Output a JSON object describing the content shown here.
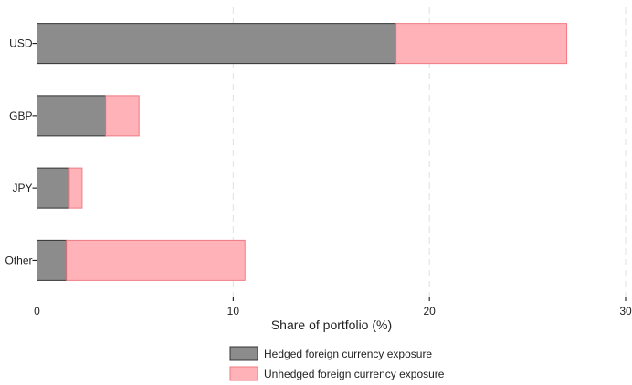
{
  "chart_data": {
    "type": "bar",
    "orientation": "horizontal",
    "stacked": true,
    "categories": [
      "USD",
      "GBP",
      "JPY",
      "Other"
    ],
    "series": [
      {
        "name": "Hedged foreign currency exposure",
        "values": [
          18.3,
          3.5,
          1.65,
          1.5
        ],
        "color": "#8c8c8c",
        "stroke": "#333333"
      },
      {
        "name": "Unhedged foreign currency exposure",
        "values": [
          8.7,
          1.7,
          0.65,
          9.1
        ],
        "color": "#ffb3b8",
        "stroke": "#f07a82"
      }
    ],
    "title": "",
    "xlabel": "Share of portfolio (%)",
    "ylabel": "",
    "xlim": [
      0,
      30
    ],
    "xticks": [
      0,
      10,
      20,
      30
    ],
    "grid": "vertical-dashed",
    "legend": "bottom"
  }
}
